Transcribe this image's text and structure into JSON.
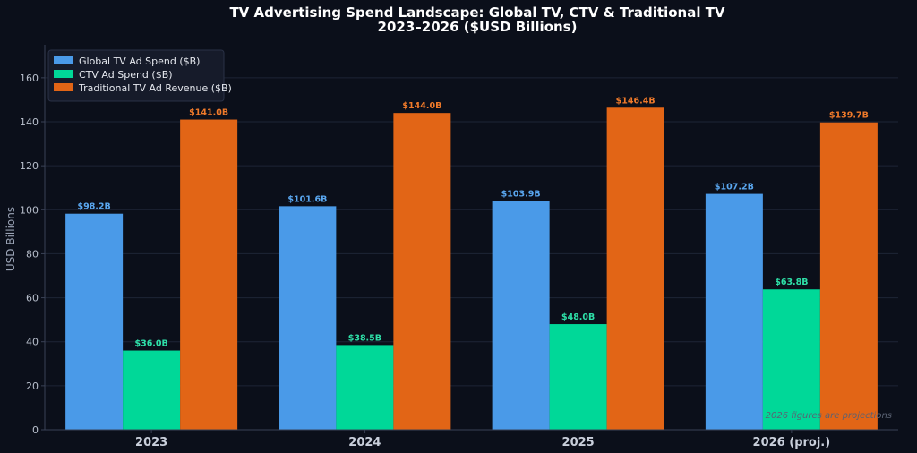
{
  "chart_data": {
    "type": "bar",
    "title": "TV Advertising Spend Landscape: Global TV, CTV & Traditional TV",
    "subtitle": "2023–2026 ($USD Billions)",
    "ylabel": "USD Billions",
    "xlabel": "",
    "categories": [
      "2023",
      "2024",
      "2025",
      "2026 (proj.)"
    ],
    "ylim": [
      0,
      175
    ],
    "yticks": [
      0,
      20,
      40,
      60,
      80,
      100,
      120,
      140,
      160
    ],
    "grid": "horizontal",
    "legend_position": "top-left",
    "series": [
      {
        "name": "Global TV Ad Spend ($B)",
        "color": "#4a9ae8",
        "label_color": "#5aa7f0",
        "values": [
          98.2,
          101.6,
          103.9,
          107.2
        ],
        "labels": [
          "$98.2B",
          "$101.6B",
          "$103.9B",
          "$107.2B"
        ]
      },
      {
        "name": "CTV Ad Spend ($B)",
        "color": "#00d898",
        "label_color": "#2ee0a8",
        "values": [
          36.0,
          38.5,
          48.0,
          63.8
        ],
        "labels": [
          "$36.0B",
          "$38.5B",
          "$48.0B",
          "$63.8B"
        ]
      },
      {
        "name": "Traditional TV Ad Revenue ($B)",
        "color": "#e26516",
        "label_color": "#f07a2a",
        "values": [
          141.0,
          144.0,
          146.4,
          139.7
        ],
        "labels": [
          "$141.0B",
          "$144.0B",
          "$146.4B",
          "$139.7B"
        ]
      }
    ],
    "watermark": "2026 figures are projections"
  },
  "colors": {
    "background": "#0b0f1a",
    "plot_background": "#0b0f1a",
    "grid": "#1e2536",
    "axis": "#3a4256",
    "legend_background": "#161b2a"
  }
}
